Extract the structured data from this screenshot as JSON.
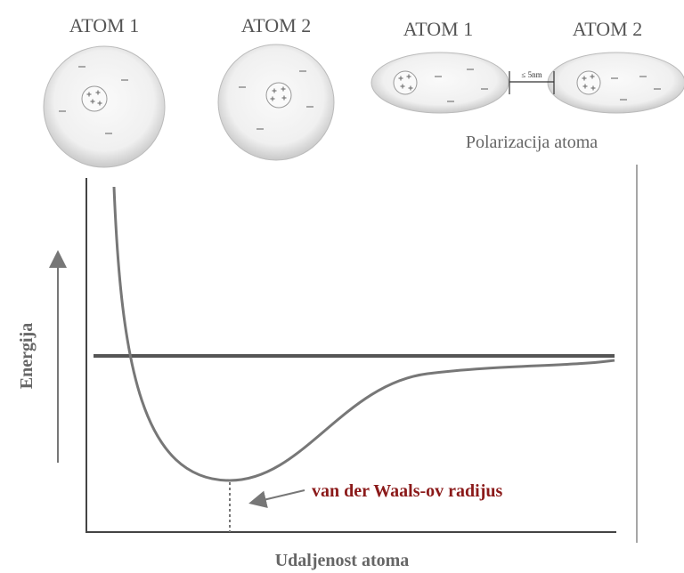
{
  "atoms_separate": {
    "labels": [
      "ATOM 1",
      "ATOM 2"
    ]
  },
  "atoms_polarized": {
    "labels": [
      "ATOM 1",
      "ATOM 2"
    ],
    "distance": "≤ 5nm",
    "caption": "Polarizacija atoma"
  },
  "graph": {
    "y_label": "Energija",
    "x_label": "Udaljenost atoma",
    "annotation": "van der Waals-ov radijus"
  }
}
